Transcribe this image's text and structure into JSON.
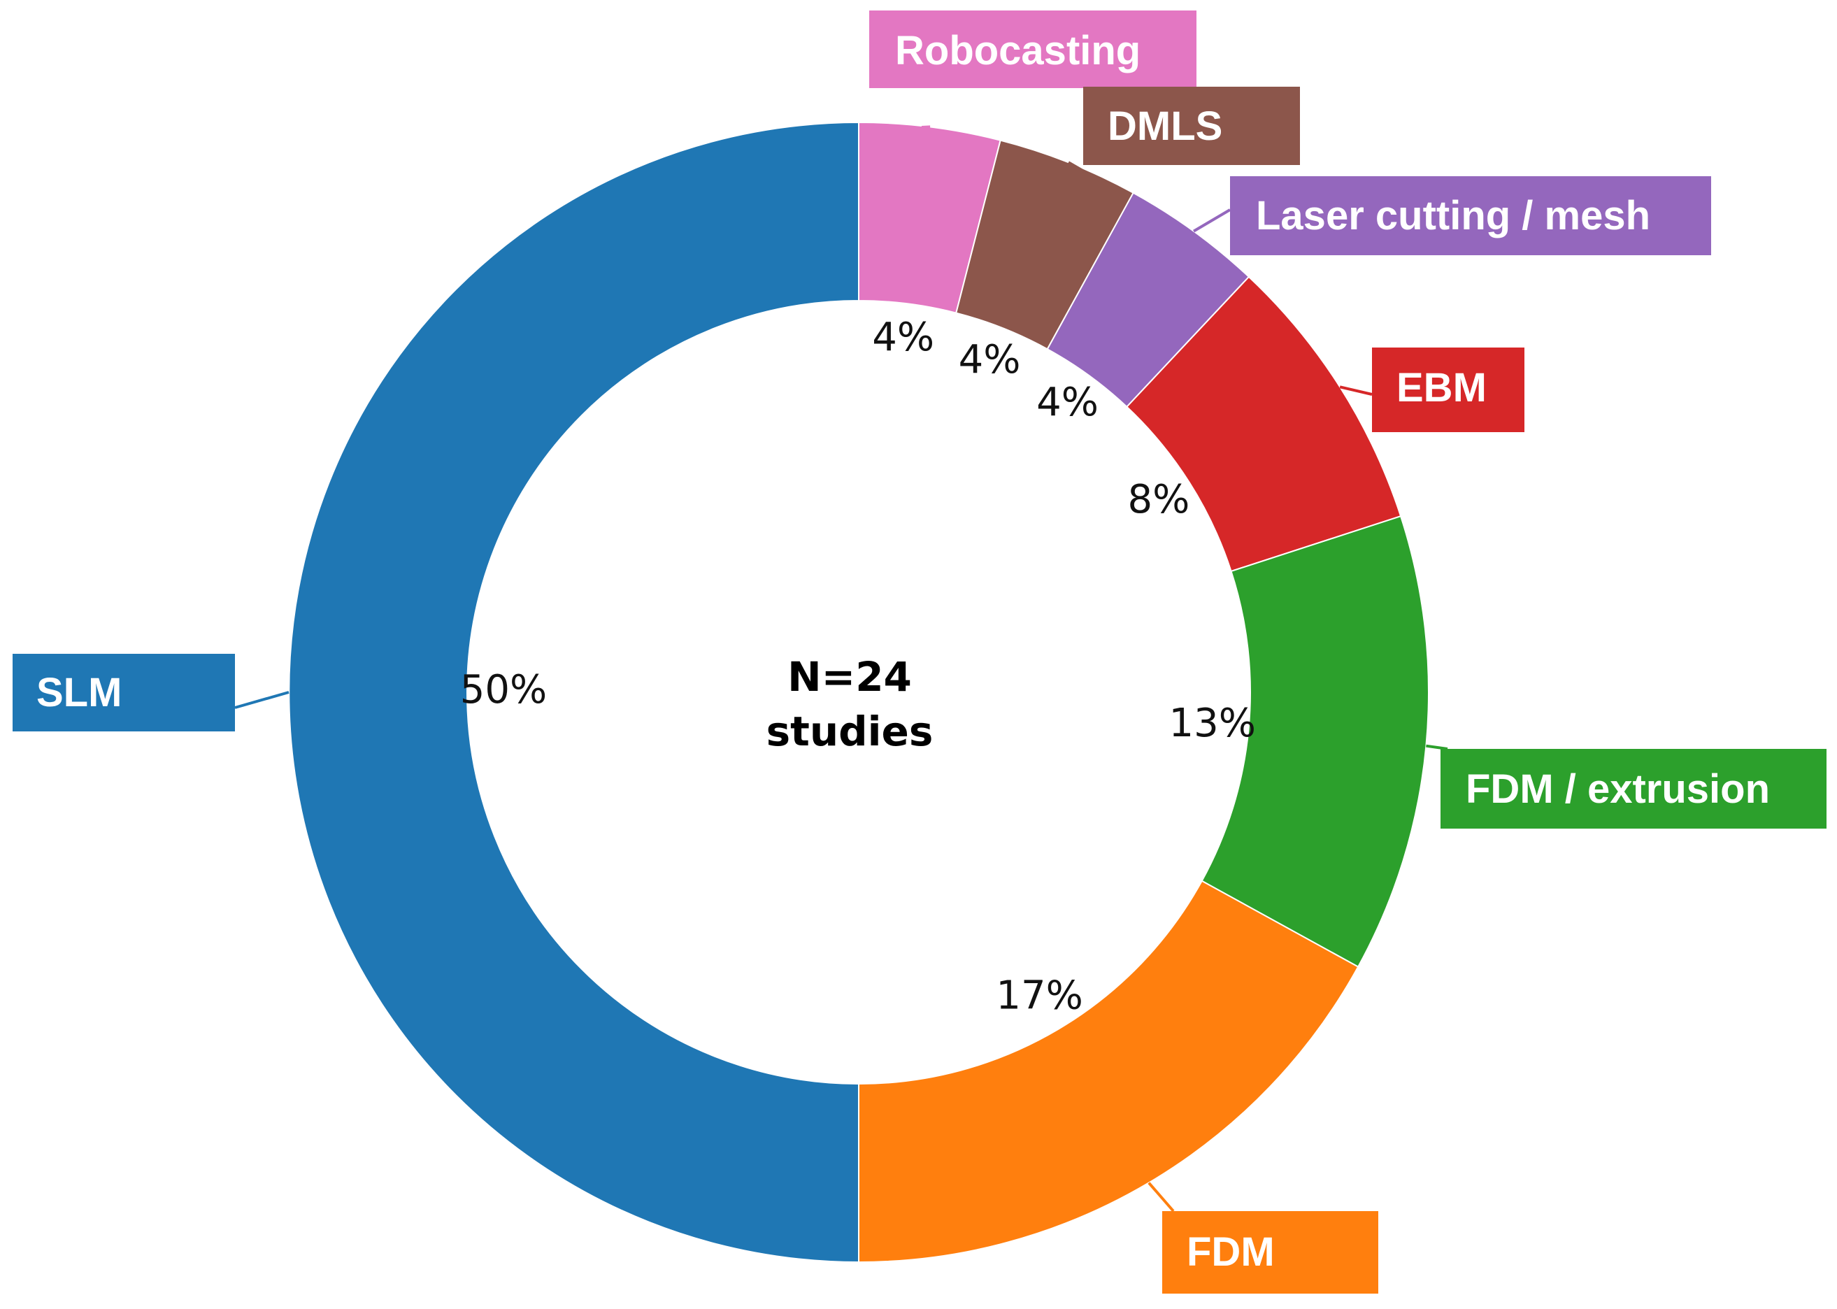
{
  "chart_data": {
    "type": "pie",
    "style": "donut",
    "center_text": [
      "N=24",
      "studies"
    ],
    "slices": [
      {
        "label": "Robocasting",
        "value": 4,
        "display": "4%",
        "color": "#e377c2"
      },
      {
        "label": "DMLS",
        "value": 4,
        "display": "4%",
        "color": "#8c564b"
      },
      {
        "label": "Laser cutting / mesh",
        "value": 4,
        "display": "4%",
        "color": "#9467bd"
      },
      {
        "label": "EBM",
        "value": 8,
        "display": "8%",
        "color": "#d62728"
      },
      {
        "label": "FDM / extrusion",
        "value": 13,
        "display": "13%",
        "color": "#2ca02c"
      },
      {
        "label": "FDM",
        "value": 17,
        "display": "17%",
        "color": "#ff7f0e"
      },
      {
        "label": "SLM",
        "value": 50,
        "display": "50%",
        "color": "#1f77b4"
      }
    ],
    "start_angle": "12 o'clock",
    "direction": "clockwise",
    "legend_position": "callouts around the ring"
  }
}
